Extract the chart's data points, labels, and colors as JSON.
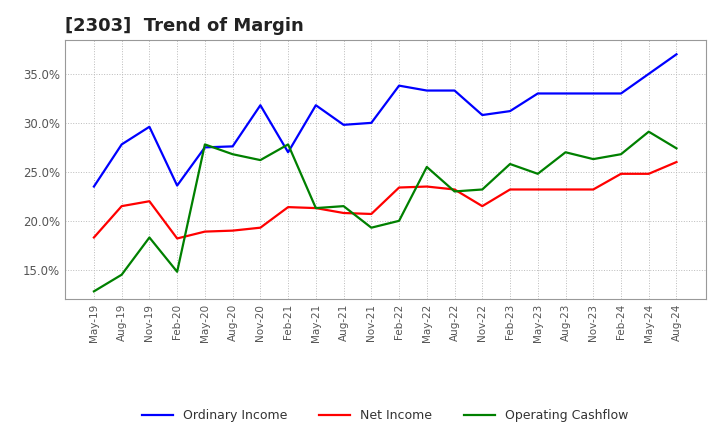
{
  "title": "[2303]  Trend of Margin",
  "title_fontsize": 13,
  "background_color": "#ffffff",
  "grid_color": "#bbbbbb",
  "ylim": [
    0.12,
    0.385
  ],
  "yticks": [
    0.15,
    0.2,
    0.25,
    0.3,
    0.35
  ],
  "x_labels": [
    "May-19",
    "Aug-19",
    "Nov-19",
    "Feb-20",
    "May-20",
    "Aug-20",
    "Nov-20",
    "Feb-21",
    "May-21",
    "Aug-21",
    "Nov-21",
    "Feb-22",
    "May-22",
    "Aug-22",
    "Nov-22",
    "Feb-23",
    "May-23",
    "Aug-23",
    "Nov-23",
    "Feb-24",
    "May-24",
    "Aug-24"
  ],
  "ordinary_income": [
    0.235,
    0.278,
    0.296,
    0.236,
    0.275,
    0.276,
    0.318,
    0.27,
    0.318,
    0.298,
    0.3,
    0.338,
    0.333,
    0.333,
    0.308,
    0.312,
    0.33,
    0.33,
    0.33,
    0.33,
    0.35,
    0.37
  ],
  "net_income": [
    0.183,
    0.215,
    0.22,
    0.182,
    0.189,
    0.19,
    0.193,
    0.214,
    0.213,
    0.208,
    0.207,
    0.234,
    0.235,
    0.232,
    0.215,
    0.232,
    0.232,
    0.232,
    0.232,
    0.248,
    0.248,
    0.26
  ],
  "operating_cashflow": [
    0.128,
    0.145,
    0.183,
    0.148,
    0.278,
    0.268,
    0.262,
    0.278,
    0.213,
    0.215,
    0.193,
    0.2,
    0.255,
    0.23,
    0.232,
    0.258,
    0.248,
    0.27,
    0.263,
    0.268,
    0.291,
    0.274
  ],
  "ordinary_color": "#0000ff",
  "net_income_color": "#ff0000",
  "cashflow_color": "#008000",
  "line_width": 1.6,
  "legend_labels": [
    "Ordinary Income",
    "Net Income",
    "Operating Cashflow"
  ]
}
